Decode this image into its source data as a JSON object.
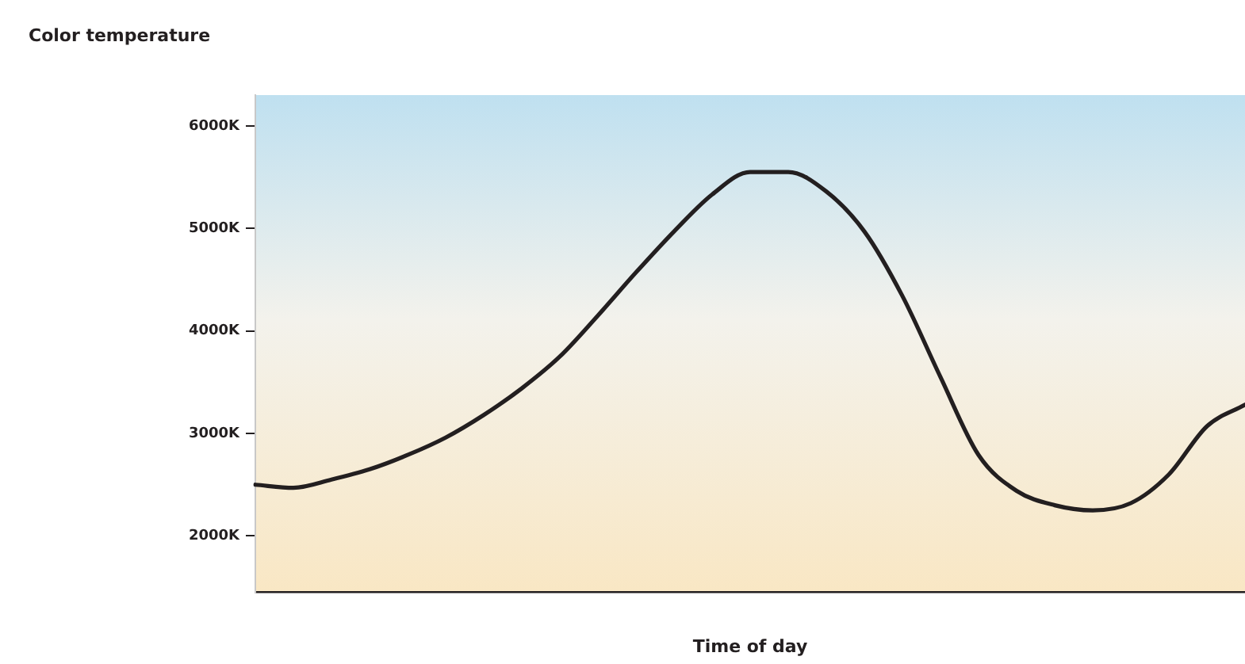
{
  "chart_data": {
    "type": "line",
    "ylabel": "Color temperature",
    "xlabel": "Time of day",
    "categories": [
      null,
      null,
      null,
      null,
      null,
      null,
      null,
      null,
      null,
      null,
      null,
      null,
      null,
      null,
      null,
      null,
      null,
      null,
      null,
      null,
      null,
      null,
      null,
      null,
      null,
      null,
      null
    ],
    "series": [
      {
        "color": "#231f20",
        "values": [
          2500,
          2470,
          2550,
          2650,
          2790,
          2960,
          3180,
          3440,
          3750,
          4150,
          4570,
          4970,
          5330,
          5550,
          5550,
          5360,
          4970,
          4340,
          3550,
          2790,
          2440,
          2300,
          2250,
          2320,
          2600,
          3070,
          3280
        ]
      }
    ],
    "ylim": [
      1450,
      6300
    ],
    "yticks": [
      {
        "value": 2000,
        "label": "2000K"
      },
      {
        "value": 3000,
        "label": "3000K"
      },
      {
        "value": 4000,
        "label": "4000K"
      },
      {
        "value": 5000,
        "label": "5000K"
      },
      {
        "value": 6000,
        "label": "6000K"
      }
    ],
    "tick_labels": "y",
    "grid": false,
    "legend": false,
    "marker": "none",
    "line_style": "solid"
  }
}
